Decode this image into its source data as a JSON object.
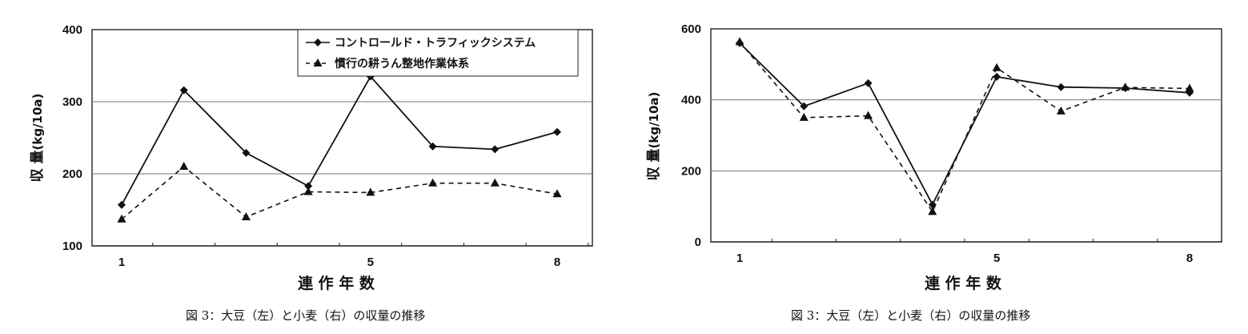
{
  "chart_data": [
    {
      "type": "line",
      "panel": "left",
      "x": [
        1,
        2,
        3,
        4,
        5,
        6,
        7,
        8
      ],
      "xticks": [
        "1",
        "5",
        "8"
      ],
      "xtick_positions": [
        1,
        5,
        8
      ],
      "ylim": [
        100,
        400
      ],
      "yticks": [
        100,
        200,
        300,
        400
      ],
      "xlabel": "連 作 年 数",
      "ylabel_top": "収",
      "ylabel_mid": "量",
      "ylabel_unit": "(kg/10a)",
      "grid": "horizontal",
      "legend": "top-right",
      "series": [
        {
          "name": "コントロールド・トラフィックシステム",
          "marker": "diamond",
          "linestyle": "solid",
          "values": [
            157,
            316,
            229,
            183,
            335,
            238,
            234,
            258
          ]
        },
        {
          "name": "慣行の耕うん整地作業体系",
          "marker": "triangle",
          "linestyle": "dashed",
          "values": [
            137,
            210,
            140,
            175,
            174,
            187,
            187,
            172
          ]
        }
      ],
      "caption": "図 3：大豆（左）と小麦（右）の収量の推移"
    },
    {
      "type": "line",
      "panel": "right",
      "x": [
        1,
        2,
        3,
        4,
        5,
        6,
        7,
        8
      ],
      "xticks": [
        "1",
        "5",
        "8"
      ],
      "xtick_positions": [
        1,
        5,
        8
      ],
      "ylim": [
        0,
        600
      ],
      "yticks": [
        0,
        200,
        400,
        600
      ],
      "xlabel": "連 作 年 数",
      "ylabel_top": "収",
      "ylabel_mid": "量",
      "ylabel_unit": "(kg/10a)",
      "grid": "horizontal",
      "series": [
        {
          "name": "コントロールド・トラフィックシステム",
          "marker": "diamond",
          "linestyle": "solid",
          "values": [
            560,
            382,
            447,
            105,
            465,
            436,
            433,
            420
          ]
        },
        {
          "name": "慣行の耕うん整地作業体系",
          "marker": "triangle",
          "linestyle": "dashed",
          "values": [
            563,
            350,
            355,
            85,
            490,
            368,
            435,
            432
          ]
        }
      ],
      "caption": "図 3：大豆（左）と小麦（右）の収量の推移"
    }
  ]
}
